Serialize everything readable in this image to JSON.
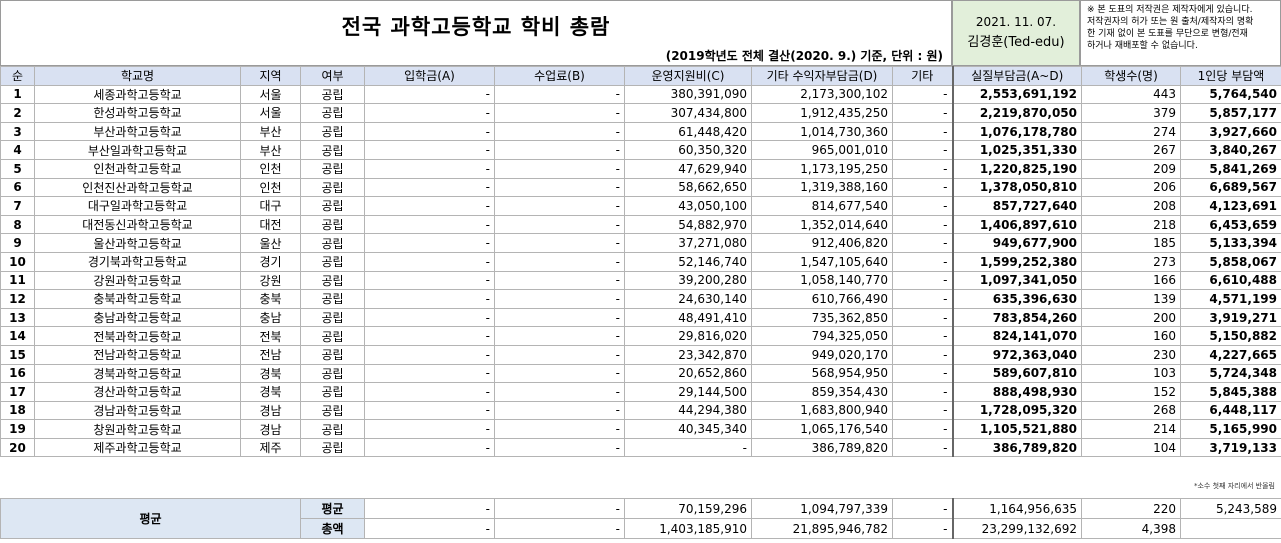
{
  "title": "전국 과학고등학교 학비 총람",
  "subtitle": "(2019학년도 전체 결산(2020. 9.) 기준, 단위 : 원)",
  "date": "2021. 11. 07.",
  "author": "김경훈(Ted-edu)",
  "copyright": [
    "※ 본 도표의 저작권은 제작자에게 있습니다.",
    "저작권자의 허가 또는 원 출처/제작자의 명확",
    "한 기재 없이 본 도표를 무단으로 변형/전재",
    "하거나 재배포할 수 없습니다."
  ],
  "headers": [
    "순",
    "학교명",
    "지역",
    "여부",
    "입학금(A)",
    "수업료(B)",
    "운영지원비(C)",
    "기타 수익자부담금(D)",
    "기타",
    "실질부담금(A~D)",
    "학생수(명)",
    "1인당 부담액"
  ],
  "rows": [
    [
      "1",
      "세종과학고등학교",
      "서울",
      "공립",
      "-",
      "-",
      "380,391,090",
      "2,173,300,102",
      "-",
      "2,553,691,192",
      "443",
      "5,764,540"
    ],
    [
      "2",
      "한성과학고등학교",
      "서울",
      "공립",
      "-",
      "-",
      "307,434,800",
      "1,912,435,250",
      "-",
      "2,219,870,050",
      "379",
      "5,857,177"
    ],
    [
      "3",
      "부산과학고등학교",
      "부산",
      "공립",
      "-",
      "-",
      "61,448,420",
      "1,014,730,360",
      "-",
      "1,076,178,780",
      "274",
      "3,927,660"
    ],
    [
      "4",
      "부산일과학고등학교",
      "부산",
      "공립",
      "-",
      "-",
      "60,350,320",
      "965,001,010",
      "-",
      "1,025,351,330",
      "267",
      "3,840,267"
    ],
    [
      "5",
      "인천과학고등학교",
      "인천",
      "공립",
      "-",
      "-",
      "47,629,940",
      "1,173,195,250",
      "-",
      "1,220,825,190",
      "209",
      "5,841,269"
    ],
    [
      "6",
      "인천진산과학고등학교",
      "인천",
      "공립",
      "-",
      "-",
      "58,662,650",
      "1,319,388,160",
      "-",
      "1,378,050,810",
      "206",
      "6,689,567"
    ],
    [
      "7",
      "대구일과학고등학교",
      "대구",
      "공립",
      "-",
      "-",
      "43,050,100",
      "814,677,540",
      "-",
      "857,727,640",
      "208",
      "4,123,691"
    ],
    [
      "8",
      "대전동신과학고등학교",
      "대전",
      "공립",
      "-",
      "-",
      "54,882,970",
      "1,352,014,640",
      "-",
      "1,406,897,610",
      "218",
      "6,453,659"
    ],
    [
      "9",
      "울산과학고등학교",
      "울산",
      "공립",
      "-",
      "-",
      "37,271,080",
      "912,406,820",
      "-",
      "949,677,900",
      "185",
      "5,133,394"
    ],
    [
      "10",
      "경기북과학고등학교",
      "경기",
      "공립",
      "-",
      "-",
      "52,146,740",
      "1,547,105,640",
      "-",
      "1,599,252,380",
      "273",
      "5,858,067"
    ],
    [
      "11",
      "강원과학고등학교",
      "강원",
      "공립",
      "-",
      "-",
      "39,200,280",
      "1,058,140,770",
      "-",
      "1,097,341,050",
      "166",
      "6,610,488"
    ],
    [
      "12",
      "충북과학고등학교",
      "충북",
      "공립",
      "-",
      "-",
      "24,630,140",
      "610,766,490",
      "-",
      "635,396,630",
      "139",
      "4,571,199"
    ],
    [
      "13",
      "충남과학고등학교",
      "충남",
      "공립",
      "-",
      "-",
      "48,491,410",
      "735,362,850",
      "-",
      "783,854,260",
      "200",
      "3,919,271"
    ],
    [
      "14",
      "전북과학고등학교",
      "전북",
      "공립",
      "-",
      "-",
      "29,816,020",
      "794,325,050",
      "-",
      "824,141,070",
      "160",
      "5,150,882"
    ],
    [
      "15",
      "전남과학고등학교",
      "전남",
      "공립",
      "-",
      "-",
      "23,342,870",
      "949,020,170",
      "-",
      "972,363,040",
      "230",
      "4,227,665"
    ],
    [
      "16",
      "경북과학고등학교",
      "경북",
      "공립",
      "-",
      "-",
      "20,652,860",
      "568,954,950",
      "-",
      "589,607,810",
      "103",
      "5,724,348"
    ],
    [
      "17",
      "경산과학고등학교",
      "경북",
      "공립",
      "-",
      "-",
      "29,144,500",
      "859,354,430",
      "-",
      "888,498,930",
      "152",
      "5,845,388"
    ],
    [
      "18",
      "경남과학고등학교",
      "경남",
      "공립",
      "-",
      "-",
      "44,294,380",
      "1,683,800,940",
      "-",
      "1,728,095,320",
      "268",
      "6,448,117"
    ],
    [
      "19",
      "창원과학고등학교",
      "경남",
      "공립",
      "-",
      "-",
      "40,345,340",
      "1,065,176,540",
      "-",
      "1,105,521,880",
      "214",
      "5,165,990"
    ],
    [
      "20",
      "제주과학고등학교",
      "제주",
      "공립",
      "-",
      "-",
      "-",
      "386,789,820",
      "-",
      "386,789,820",
      "104",
      "3,719,133"
    ]
  ],
  "note": "*소수 첫째 자리에서 반올림",
  "footer": {
    "section_label": "평균",
    "avg": {
      "label": "평균",
      "a": "-",
      "b": "-",
      "c": "70,159,296",
      "d": "1,094,797,339",
      "etc": "-",
      "total": "1,164,956,635",
      "students": "220",
      "per": "5,243,589"
    },
    "sum": {
      "label": "총액",
      "a": "-",
      "b": "-",
      "c": "1,403,185,910",
      "d": "21,895,946,782",
      "etc": "-",
      "total": "23,299,132,692",
      "students": "4,398",
      "per": ""
    }
  }
}
